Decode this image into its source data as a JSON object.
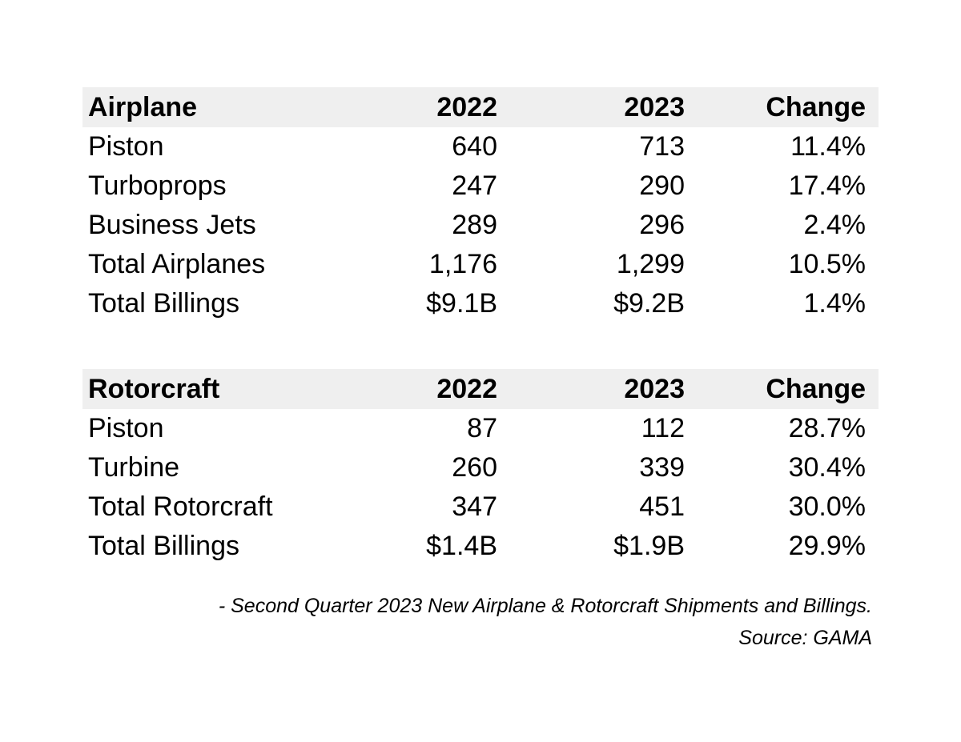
{
  "chart_data": [
    {
      "type": "table",
      "columns": [
        "Airplane",
        "2022",
        "2023",
        "Change"
      ],
      "rows": [
        [
          "Piston",
          "640",
          "713",
          "11.4%"
        ],
        [
          "Turboprops",
          "247",
          "290",
          "17.4%"
        ],
        [
          "Business Jets",
          "289",
          "296",
          "2.4%"
        ],
        [
          "Total Airplanes",
          "1,176",
          "1,299",
          "10.5%"
        ],
        [
          "Total Billings",
          "$9.1B",
          "$9.2B",
          "1.4%"
        ]
      ]
    },
    {
      "type": "table",
      "columns": [
        "Rotorcraft",
        "2022",
        "2023",
        "Change"
      ],
      "rows": [
        [
          "Piston",
          "87",
          "112",
          "28.7%"
        ],
        [
          "Turbine",
          "260",
          "339",
          "30.4%"
        ],
        [
          "Total Rotorcraft",
          "347",
          "451",
          "30.0%"
        ],
        [
          "Total Billings",
          "$1.4B",
          "$1.9B",
          "29.9%"
        ]
      ]
    }
  ],
  "caption": {
    "title": "- Second Quarter 2023 New Airplane & Rotorcraft Shipments and Billings.",
    "source": "Source: GAMA"
  },
  "colors": {
    "header_background": "#efefef",
    "text": "#000000",
    "background": "#ffffff"
  }
}
